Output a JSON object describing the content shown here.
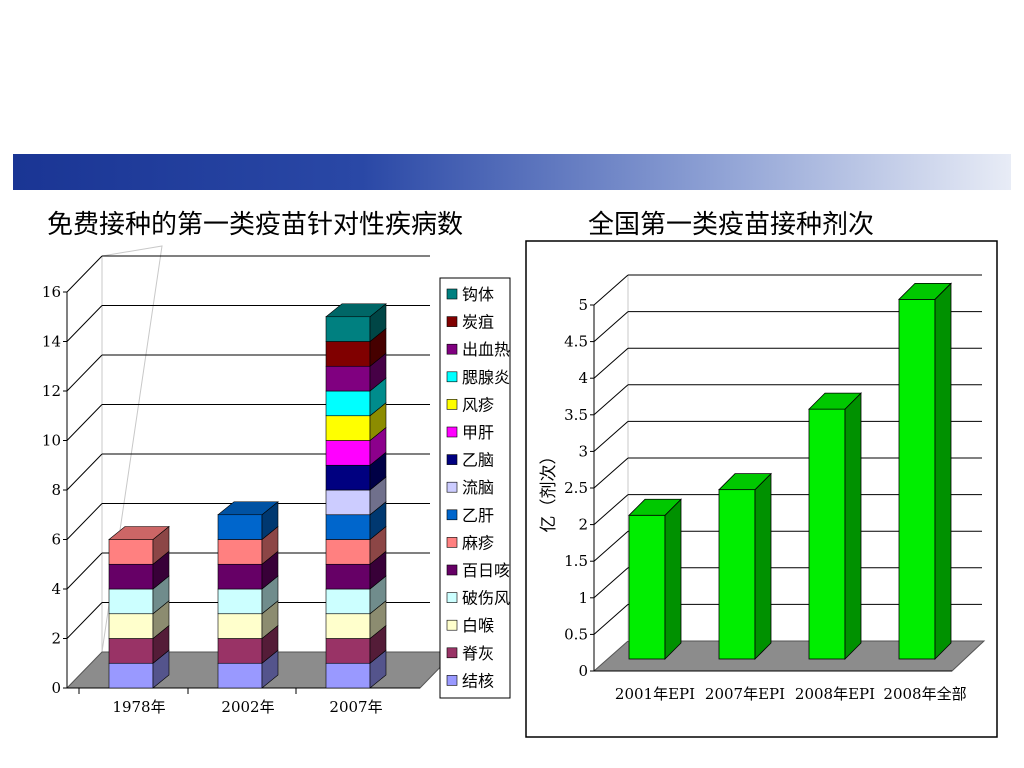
{
  "left_title": "免费接种的第一类疫苗针对性疾病数",
  "right_title": "全国第一类疫苗接种剂次",
  "chart_data": [
    {
      "type": "bar",
      "stacked": true,
      "title": "免费接种的第一类疫苗针对性疾病数",
      "categories": [
        "1978年",
        "2002年",
        "2007年"
      ],
      "ylim": [
        0,
        16
      ],
      "yticks": [
        "0",
        "2",
        "4",
        "6",
        "8",
        "10",
        "12",
        "14",
        "16"
      ],
      "grid": true,
      "legend_position": "right",
      "series": [
        {
          "name": "结核",
          "color": "#9999ff",
          "values": [
            1,
            1,
            1
          ]
        },
        {
          "name": "脊灰",
          "color": "#993366",
          "values": [
            1,
            1,
            1
          ]
        },
        {
          "name": "白喉",
          "color": "#ffffcc",
          "values": [
            1,
            1,
            1
          ]
        },
        {
          "name": "破伤风",
          "color": "#ccffff",
          "values": [
            1,
            1,
            1
          ]
        },
        {
          "name": "百日咳",
          "color": "#660066",
          "values": [
            1,
            1,
            1
          ]
        },
        {
          "name": "麻疹",
          "color": "#ff8080",
          "values": [
            1,
            1,
            1
          ]
        },
        {
          "name": "乙肝",
          "color": "#0066cc",
          "values": [
            0,
            1,
            1
          ]
        },
        {
          "name": "流脑",
          "color": "#ccccff",
          "values": [
            0,
            0,
            1
          ]
        },
        {
          "name": "乙脑",
          "color": "#000080",
          "values": [
            0,
            0,
            1
          ]
        },
        {
          "name": "甲肝",
          "color": "#ff00ff",
          "values": [
            0,
            0,
            1
          ]
        },
        {
          "name": "风疹",
          "color": "#ffff00",
          "values": [
            0,
            0,
            1
          ]
        },
        {
          "name": "腮腺炎",
          "color": "#00ffff",
          "values": [
            0,
            0,
            1
          ]
        },
        {
          "name": "出血热",
          "color": "#800080",
          "values": [
            0,
            0,
            1
          ]
        },
        {
          "name": "炭疽",
          "color": "#800000",
          "values": [
            0,
            0,
            1
          ]
        },
        {
          "name": "钩体",
          "color": "#008080",
          "values": [
            0,
            0,
            1
          ]
        }
      ]
    },
    {
      "type": "bar",
      "title": "全国第一类疫苗接种剂次",
      "categories": [
        "2001年EPI",
        "2007年EPI",
        "2008年EPI",
        "2008年全部"
      ],
      "values": [
        2.1,
        2.45,
        3.55,
        5.05
      ],
      "ylabel": "亿（剂次）",
      "ylim": [
        0,
        5
      ],
      "yticks": [
        "0",
        "0.5",
        "1",
        "1.5",
        "2",
        "2.5",
        "3",
        "3.5",
        "4",
        "4.5",
        "5"
      ],
      "grid": true,
      "bar_color": "#00ee00"
    }
  ]
}
